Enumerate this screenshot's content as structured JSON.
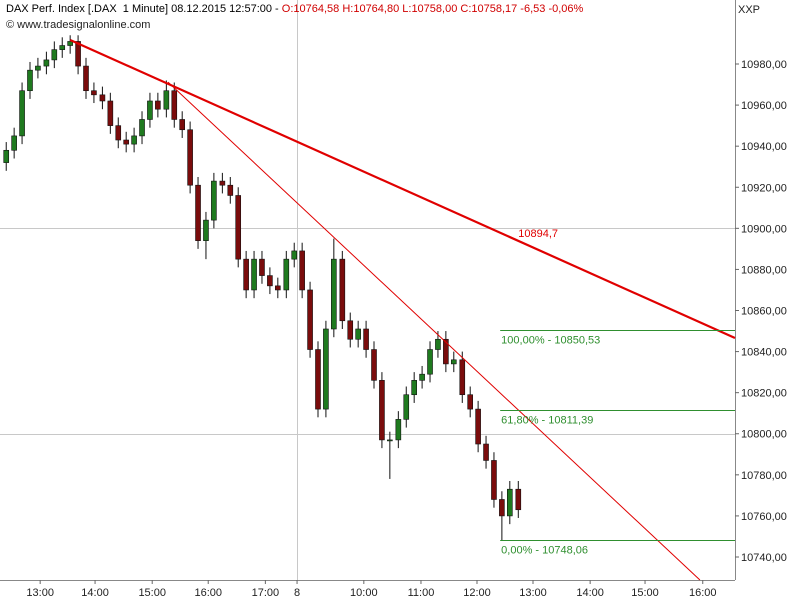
{
  "chart_data": {
    "type": "candlestick",
    "title": "DAX Perf. Index [.DAX  1 Minute] 08.12.2015 12:57:00 -",
    "quote": "O:10764,58 H:10764,80 L:10758,00 C:10758,17 -6,53 -0,06%",
    "subtitle": "© www.tradesignalonline.com",
    "axis_tag": "XXP",
    "up_color": "#1f7a1f",
    "down_color": "#7a0c0c",
    "x": [
      -0.6,
      -0.46,
      -0.32,
      -0.18,
      -0.04,
      0.11,
      0.25,
      0.39,
      0.53,
      0.67,
      0.81,
      0.95,
      1.1,
      1.24,
      1.38,
      1.52,
      1.66,
      1.8,
      1.94,
      2.08,
      2.23,
      2.37,
      2.51,
      2.65,
      2.79,
      2.93,
      3.07,
      3.22,
      3.36,
      3.5,
      3.64,
      3.78,
      3.92,
      4.06,
      4.2,
      4.35,
      4.49,
      4.63,
      4.77,
      4.91,
      5.05,
      5.19,
      5.34,
      5.48,
      5.62,
      5.76,
      5.9,
      6.04,
      6.18,
      6.33,
      6.47,
      6.61,
      6.75,
      6.89,
      7.03,
      7.17,
      7.31,
      7.46,
      7.6,
      7.74,
      7.88,
      8.02,
      8.16,
      8.3,
      8.45
    ],
    "open": [
      10932,
      10938,
      10945,
      10967,
      10977,
      10979,
      10982,
      10987,
      10989,
      10991,
      10979,
      10967,
      10965,
      10962,
      10950,
      10943,
      10941,
      10945,
      10953,
      10962,
      10958,
      10967,
      10953,
      10948,
      10921,
      10894,
      10904,
      10923,
      10921,
      10916,
      10885,
      10870,
      10885,
      10877,
      10872,
      10870,
      10885,
      10889,
      10870,
      10841,
      10812,
      10851,
      10885,
      10855,
      10846,
      10851,
      10841,
      10826,
      10797,
      10797,
      10807,
      10819,
      10826,
      10829,
      10841,
      10846,
      10834,
      10836,
      10819,
      10812,
      10795,
      10787,
      10768,
      10760,
      10773
    ],
    "high": [
      10942,
      10949,
      10971,
      10981,
      10983,
      10986,
      10991,
      10993,
      10994,
      10994,
      10983,
      10971,
      10969,
      10966,
      10954,
      10947,
      10949,
      10957,
      10966,
      10966,
      10972,
      10971,
      10957,
      10952,
      10925,
      10908,
      10927,
      10927,
      10925,
      10920,
      10889,
      10889,
      10889,
      10881,
      10876,
      10889,
      10893,
      10893,
      10874,
      10845,
      10855,
      10895,
      10889,
      10859,
      10855,
      10855,
      10845,
      10830,
      10801,
      10811,
      10823,
      10830,
      10833,
      10845,
      10850,
      10850,
      10840,
      10840,
      10823,
      10816,
      10799,
      10791,
      10772,
      10777,
      10777
    ],
    "low": [
      10928,
      10934,
      10941,
      10963,
      10973,
      10975,
      10978,
      10983,
      10985,
      10975,
      10963,
      10961,
      10958,
      10946,
      10939,
      10937,
      10937,
      10941,
      10949,
      10954,
      10954,
      10949,
      10944,
      10917,
      10890,
      10885,
      10900,
      10917,
      10912,
      10881,
      10866,
      10866,
      10873,
      10868,
      10866,
      10866,
      10881,
      10866,
      10837,
      10808,
      10808,
      10847,
      10851,
      10842,
      10842,
      10837,
      10822,
      10793,
      10778,
      10793,
      10803,
      10815,
      10822,
      10825,
      10837,
      10830,
      10830,
      10815,
      10808,
      10791,
      10783,
      10764,
      10748,
      10756,
      10759
    ],
    "close": [
      10938,
      10945,
      10967,
      10977,
      10979,
      10982,
      10987,
      10989,
      10991,
      10979,
      10967,
      10965,
      10962,
      10950,
      10943,
      10941,
      10945,
      10953,
      10962,
      10958,
      10967,
      10953,
      10948,
      10921,
      10894,
      10904,
      10923,
      10921,
      10916,
      10885,
      10870,
      10885,
      10877,
      10872,
      10870,
      10885,
      10889,
      10870,
      10841,
      10812,
      10851,
      10885,
      10855,
      10846,
      10851,
      10841,
      10826,
      10797,
      10797,
      10807,
      10819,
      10826,
      10829,
      10841,
      10846,
      10834,
      10836,
      10819,
      10812,
      10795,
      10787,
      10768,
      10760,
      10773,
      10763
    ],
    "xlim": [
      -0.71,
      12.28
    ],
    "ylim": [
      10728.8,
      11002.4
    ],
    "xticks": [
      {
        "value": 0,
        "label": "13:00"
      },
      {
        "value": 0.97,
        "label": "14:00"
      },
      {
        "value": 1.98,
        "label": "15:00"
      },
      {
        "value": 2.97,
        "label": "16:00"
      },
      {
        "value": 3.98,
        "label": "17:00"
      },
      {
        "value": 4.54,
        "label": "8"
      },
      {
        "value": 5.72,
        "label": "10:00"
      },
      {
        "value": 6.73,
        "label": "11:00"
      },
      {
        "value": 7.72,
        "label": "12:00"
      },
      {
        "value": 8.71,
        "label": "13:00"
      },
      {
        "value": 9.72,
        "label": "14:00"
      },
      {
        "value": 10.69,
        "label": "15:00"
      },
      {
        "value": 11.71,
        "label": "16:00"
      }
    ],
    "yticks": [
      {
        "value": 10740,
        "label": "10740,00"
      },
      {
        "value": 10760,
        "label": "10760,00"
      },
      {
        "value": 10780,
        "label": "10780,00"
      },
      {
        "value": 10800,
        "label": "10800,00"
      },
      {
        "value": 10820,
        "label": "10820,00"
      },
      {
        "value": 10840,
        "label": "10840,00"
      },
      {
        "value": 10860,
        "label": "10860,00"
      },
      {
        "value": 10880,
        "label": "10880,00"
      },
      {
        "value": 10900,
        "label": "10900,00"
      },
      {
        "value": 10920,
        "label": "10920,00"
      },
      {
        "value": 10940,
        "label": "10940,00"
      },
      {
        "value": 10960,
        "label": "10960,00"
      },
      {
        "value": 10980,
        "label": "10980,00"
      }
    ],
    "ygrid": [
      10800,
      10900
    ],
    "xgrid": [
      4.54
    ],
    "trendlines": [
      {
        "x": [
          0.53,
          12.28
        ],
        "y": [
          10991.7,
          10846.6
        ],
        "color": "#e00000",
        "width": 2.2
      },
      {
        "x": [
          2.26,
          11.66
        ],
        "y": [
          10971.2,
          10728.8
        ],
        "color": "#e00000",
        "width": 1
      }
    ],
    "annotations": [
      {
        "text": "10894,7",
        "value": 10894.7,
        "x": 8.45,
        "color": "#e00000"
      }
    ],
    "levels": [
      {
        "label": "100,00% - 10850,53",
        "value": 10850.53,
        "x_start": 8.13
      },
      {
        "label": "61,80% - 10811,39",
        "value": 10811.39,
        "x_start": 8.13
      },
      {
        "label": "0,00% - 10748,06",
        "value": 10748.06,
        "x_start": 8.13
      }
    ],
    "level_color": "#2f8f2f"
  }
}
